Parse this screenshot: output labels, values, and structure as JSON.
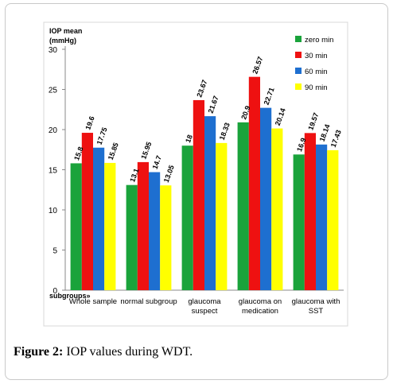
{
  "caption": {
    "label": "Figure 2:",
    "text": "IOP values during WDT."
  },
  "chart_data": {
    "type": "bar",
    "title": "",
    "ylabel": "IOP mean (mmHg)",
    "ylabel_lines": [
      "IOP mean",
      "(mmHg)"
    ],
    "xlabel": "subgroups»",
    "ylim": [
      0,
      30
    ],
    "yticks": [
      0,
      5,
      10,
      15,
      20,
      25,
      30
    ],
    "grid": false,
    "legend_position": "top-right",
    "categories": [
      [
        "Whole sample"
      ],
      [
        "normal subgroup"
      ],
      [
        "glaucoma",
        "suspect"
      ],
      [
        "glaucoma on",
        "medication"
      ],
      [
        "glaucoma with",
        "SST"
      ]
    ],
    "series": [
      {
        "name": "zero min",
        "color": "#1aa33b",
        "values": [
          15.8,
          13.1,
          18,
          20.9,
          16.9
        ],
        "labels": [
          "15.8",
          "13.1",
          "18",
          "20.9",
          "16.9"
        ]
      },
      {
        "name": "30 min",
        "color": "#ee1111",
        "values": [
          19.6,
          15.95,
          23.67,
          26.57,
          19.57
        ],
        "labels": [
          "19.6",
          "15.95",
          "23.67",
          "26.57",
          "19.57"
        ]
      },
      {
        "name": "60 min",
        "color": "#1e6fd0",
        "values": [
          17.75,
          14.7,
          21.67,
          22.71,
          18.14
        ],
        "labels": [
          "17.75",
          "14.7",
          "21.67",
          "22.71",
          "18.14"
        ]
      },
      {
        "name": "90 min",
        "color": "#ffff00",
        "values": [
          15.85,
          13.05,
          18.33,
          20.14,
          17.43
        ],
        "labels": [
          "15.85",
          "13.05",
          "18.33",
          "20.14",
          "17.43"
        ]
      }
    ]
  }
}
